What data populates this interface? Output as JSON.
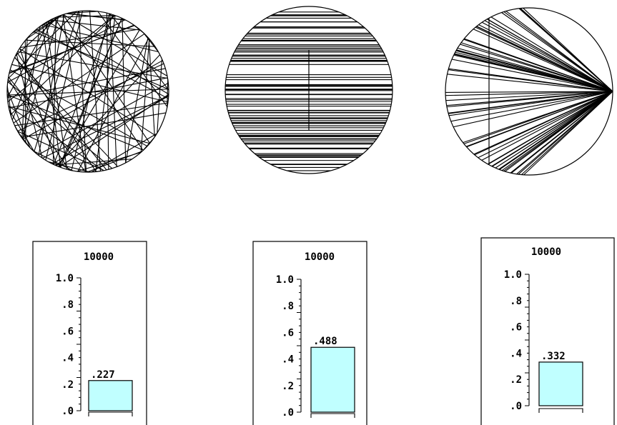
{
  "colors": {
    "bar_fill": "#c0ffff",
    "stroke": "#000000",
    "background": "#ffffff"
  },
  "panels": [
    {
      "method": "random-chords",
      "count_label": "10000",
      "probability": 0.227,
      "value_label": ".227"
    },
    {
      "method": "parallel-chords",
      "count_label": "10000",
      "probability": 0.488,
      "value_label": ".488"
    },
    {
      "method": "fan-from-endpoint",
      "count_label": "10000",
      "probability": 0.332,
      "value_label": ".332"
    }
  ],
  "axis": {
    "ticks": [
      "1.0",
      ".8",
      ".6",
      ".4",
      ".2",
      ".0"
    ],
    "ylim": [
      0,
      1
    ]
  }
}
